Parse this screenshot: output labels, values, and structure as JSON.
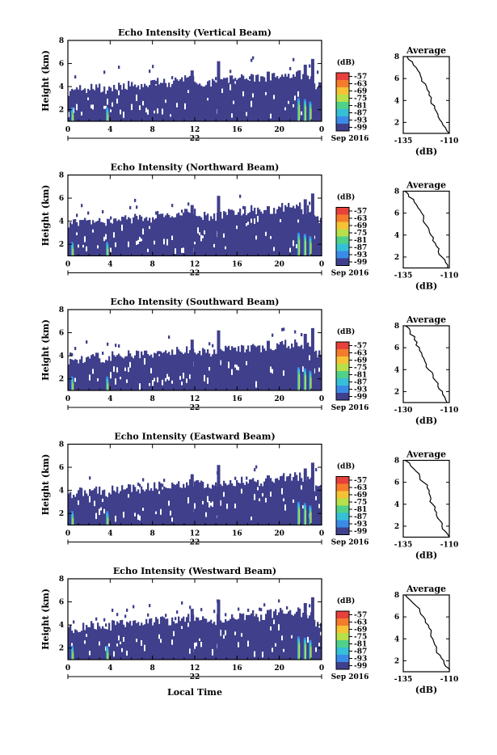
{
  "chart_data": [
    {
      "type": "heatmap",
      "title": "Echo Intensity (Vertical Beam)",
      "ylabel": "Height (km)",
      "xticks": [
        "0",
        "4",
        "8",
        "12",
        "16",
        "20",
        "0"
      ],
      "date_label": "22",
      "date_suffix": "Sep 2016",
      "ylim": [
        1,
        8
      ],
      "yticks": [
        "2",
        "4",
        "6",
        "8"
      ],
      "xlim_hours": [
        0,
        24
      ],
      "colorbar": {
        "unit": "(dB)",
        "levels": [
          "-57",
          "-63",
          "-69",
          "-75",
          "-81",
          "-87",
          "-93",
          "-99"
        ]
      },
      "profile": {
        "title": "Average",
        "xlabel": "(dB)",
        "xlim": [
          -135,
          -110
        ],
        "xticks": [
          "-135",
          "-110"
        ],
        "yticks": [
          "2",
          "4",
          "6",
          "8"
        ],
        "ylim": [
          1,
          8
        ],
        "heights": [
          8.0,
          7.5,
          7.0,
          6.5,
          6.0,
          5.5,
          5.0,
          4.5,
          4.0,
          3.5,
          3.0,
          2.5,
          2.0,
          1.5,
          1.0
        ],
        "values": [
          -133,
          -130,
          -128,
          -126,
          -125,
          -123,
          -122,
          -121,
          -120,
          -118,
          -117,
          -116,
          -114,
          -112,
          -110
        ]
      },
      "max_echo_top_km": [
        3.6,
        3.8,
        3.9,
        3.7,
        4.0,
        4.1,
        4.0,
        4.2,
        4.4,
        4.3,
        4.5,
        4.6,
        4.4,
        4.3,
        4.5,
        4.6,
        4.7,
        4.8,
        4.6,
        4.9,
        5.0,
        5.1,
        4.8,
        4.0
      ]
    },
    {
      "type": "heatmap",
      "title": "Echo Intensity (Northward Beam)",
      "ylabel": "Height (km)",
      "xticks": [
        "0",
        "4",
        "8",
        "12",
        "16",
        "20",
        "0"
      ],
      "date_label": "22",
      "date_suffix": "Sep 2016",
      "ylim": [
        1,
        8
      ],
      "yticks": [
        "2",
        "4",
        "6",
        "8"
      ],
      "xlim_hours": [
        0,
        24
      ],
      "colorbar": {
        "unit": "(dB)",
        "levels": [
          "-57",
          "-63",
          "-69",
          "-75",
          "-81",
          "-87",
          "-93",
          "-99"
        ]
      },
      "profile": {
        "title": "Average",
        "xlabel": "(dB)",
        "xlim": [
          -135,
          -110
        ],
        "xticks": [
          "-135",
          "-110"
        ],
        "yticks": [
          "2",
          "4",
          "6",
          "8"
        ],
        "ylim": [
          1,
          8
        ],
        "heights": [
          8.0,
          7.5,
          7.0,
          6.5,
          6.0,
          5.5,
          5.0,
          4.5,
          4.0,
          3.5,
          3.0,
          2.5,
          2.0,
          1.5,
          1.0
        ],
        "values": [
          -134,
          -132,
          -129,
          -127,
          -125,
          -124,
          -123,
          -121,
          -120,
          -119,
          -117,
          -116,
          -114,
          -112,
          -111
        ]
      },
      "max_echo_top_km": [
        3.8,
        3.9,
        4.0,
        3.9,
        4.1,
        4.2,
        4.3,
        4.2,
        4.5,
        4.4,
        4.6,
        4.7,
        4.5,
        4.4,
        4.6,
        4.8,
        4.9,
        5.0,
        4.8,
        5.0,
        5.2,
        5.3,
        5.0,
        4.2
      ]
    },
    {
      "type": "heatmap",
      "title": "Echo Intensity (Southward Beam)",
      "ylabel": "Height (km)",
      "xticks": [
        "0",
        "4",
        "8",
        "12",
        "16",
        "20",
        "0"
      ],
      "date_label": "22",
      "date_suffix": "Sep 2016",
      "ylim": [
        1,
        8
      ],
      "yticks": [
        "2",
        "4",
        "6",
        "8"
      ],
      "xlim_hours": [
        0,
        24
      ],
      "colorbar": {
        "unit": "(dB)",
        "levels": [
          "-57",
          "-63",
          "-69",
          "-75",
          "-81",
          "-87",
          "-93",
          "-99"
        ]
      },
      "profile": {
        "title": "Average",
        "xlabel": "(dB)",
        "xlim": [
          -130,
          -110
        ],
        "xticks": [
          "-130",
          "-110"
        ],
        "yticks": [
          "2",
          "4",
          "6",
          "8"
        ],
        "ylim": [
          1,
          8
        ],
        "heights": [
          8.0,
          7.5,
          7.0,
          6.5,
          6.0,
          5.5,
          5.0,
          4.5,
          4.0,
          3.5,
          3.0,
          2.5,
          2.0,
          1.5,
          1.0
        ],
        "values": [
          -129,
          -127,
          -125,
          -124,
          -123,
          -122,
          -121,
          -120,
          -119,
          -117,
          -116,
          -115,
          -113,
          -112,
          -111
        ]
      },
      "max_echo_top_km": [
        3.6,
        3.7,
        3.9,
        3.8,
        4.0,
        4.1,
        4.1,
        4.2,
        4.3,
        4.3,
        4.4,
        4.5,
        4.4,
        4.3,
        4.5,
        4.6,
        4.6,
        4.7,
        4.6,
        4.8,
        5.0,
        5.1,
        4.9,
        4.1
      ]
    },
    {
      "type": "heatmap",
      "title": "Echo Intensity (Eastward Beam)",
      "ylabel": "Height (km)",
      "xticks": [
        "0",
        "4",
        "8",
        "12",
        "16",
        "20",
        "0"
      ],
      "date_label": "22",
      "date_suffix": "Sep 2016",
      "ylim": [
        1,
        8
      ],
      "yticks": [
        "2",
        "4",
        "6",
        "8"
      ],
      "xlim_hours": [
        0,
        24
      ],
      "colorbar": {
        "unit": "(dB)",
        "levels": [
          "-57",
          "-63",
          "-69",
          "-75",
          "-81",
          "-87",
          "-93",
          "-99"
        ]
      },
      "profile": {
        "title": "Average",
        "xlabel": "(dB)",
        "xlim": [
          -135,
          -110
        ],
        "xticks": [
          "-135",
          "-110"
        ],
        "yticks": [
          "2",
          "4",
          "6",
          "8"
        ],
        "ylim": [
          1,
          8
        ],
        "heights": [
          8.0,
          7.5,
          7.0,
          6.5,
          6.0,
          5.5,
          5.0,
          4.5,
          4.0,
          3.5,
          3.0,
          2.5,
          2.0,
          1.5,
          1.0
        ],
        "values": [
          -134,
          -131,
          -128,
          -126,
          -124,
          -122,
          -121,
          -120,
          -119,
          -118,
          -117,
          -115,
          -114,
          -112,
          -110
        ]
      },
      "max_echo_top_km": [
        3.7,
        3.9,
        4.0,
        3.8,
        4.1,
        4.2,
        4.1,
        4.3,
        4.4,
        4.4,
        4.5,
        4.6,
        4.5,
        4.4,
        4.5,
        4.7,
        4.8,
        4.9,
        4.7,
        4.9,
        5.1,
        5.2,
        4.9,
        4.1
      ]
    },
    {
      "type": "heatmap",
      "title": "Echo Intensity (Westward Beam)",
      "ylabel": "Height (km)",
      "xlabel": "Local Time",
      "xticks": [
        "0",
        "4",
        "8",
        "12",
        "16",
        "20",
        "0"
      ],
      "date_label": "22",
      "date_suffix": "Sep 2016",
      "ylim": [
        1,
        8
      ],
      "yticks": [
        "2",
        "4",
        "6",
        "8"
      ],
      "xlim_hours": [
        0,
        24
      ],
      "colorbar": {
        "unit": "(dB)",
        "levels": [
          "-57",
          "-63",
          "-69",
          "-75",
          "-81",
          "-87",
          "-93",
          "-99"
        ]
      },
      "profile": {
        "title": "Average",
        "xlabel": "(dB)",
        "xlim": [
          -135,
          -110
        ],
        "xticks": [
          "-135",
          "-110"
        ],
        "yticks": [
          "2",
          "4",
          "6",
          "8"
        ],
        "ylim": [
          1,
          8
        ],
        "heights": [
          8.0,
          7.5,
          7.0,
          6.5,
          6.0,
          5.5,
          5.0,
          4.5,
          4.0,
          3.5,
          3.0,
          2.5,
          2.0,
          1.5,
          1.0
        ],
        "values": [
          -134,
          -131,
          -128,
          -126,
          -124,
          -123,
          -121,
          -120,
          -119,
          -118,
          -117,
          -115,
          -113,
          -112,
          -110
        ]
      },
      "max_echo_top_km": [
        3.7,
        3.8,
        4.0,
        3.8,
        4.1,
        4.1,
        4.2,
        4.2,
        4.4,
        4.3,
        4.5,
        4.6,
        4.4,
        4.3,
        4.6,
        4.7,
        4.8,
        4.9,
        4.7,
        5.0,
        5.1,
        5.2,
        4.9,
        4.1
      ]
    }
  ],
  "colors": {
    "navy": "#3f3f8c",
    "colorbar": [
      "#e8403a",
      "#f57c2c",
      "#f5c335",
      "#b8e04a",
      "#4fd18a",
      "#35c0d8",
      "#3a8be8",
      "#3f3f8c"
    ]
  }
}
